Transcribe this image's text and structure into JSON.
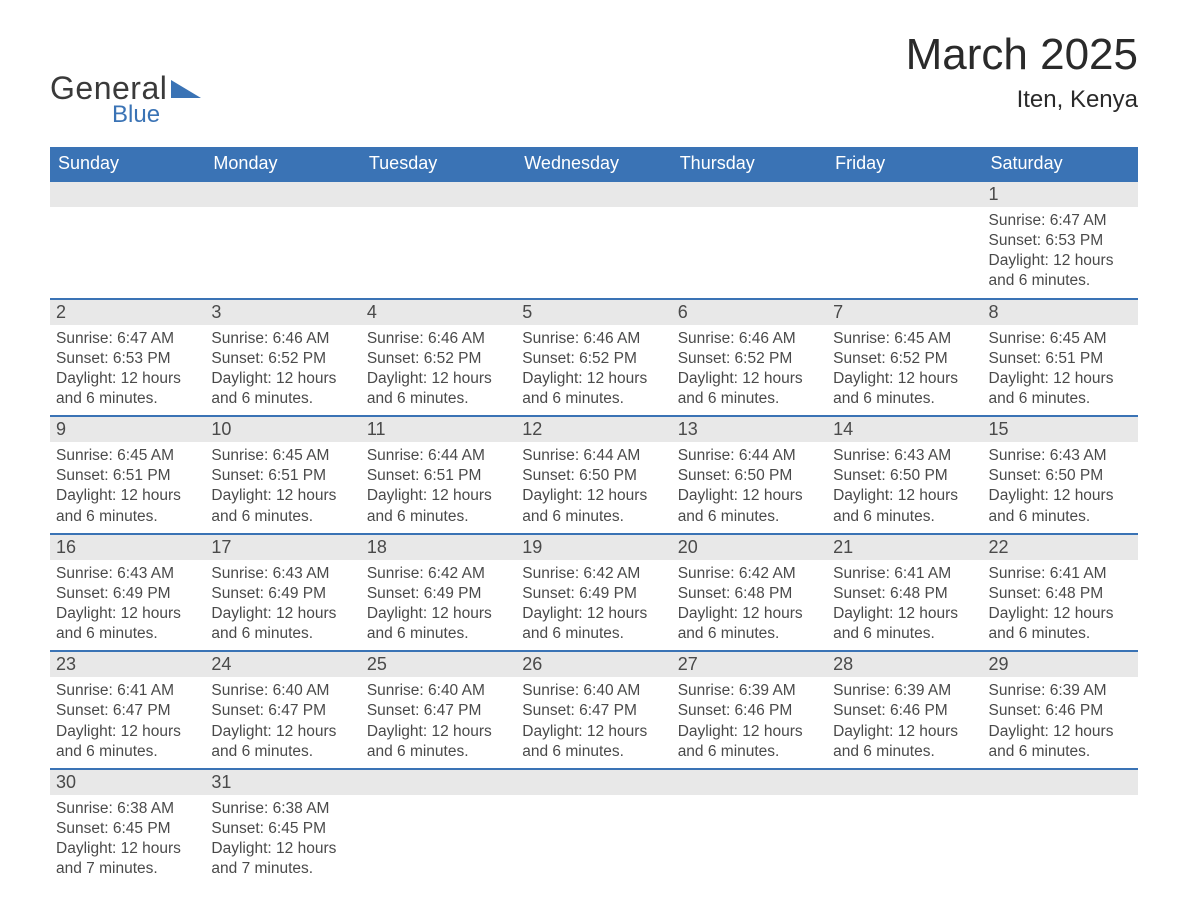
{
  "brand": {
    "general": "General",
    "blue": "Blue"
  },
  "title": {
    "month": "March 2025",
    "location": "Iten, Kenya"
  },
  "colors": {
    "header_bg": "#3a73b5",
    "header_text": "#ffffff",
    "daynum_bg": "#e8e8e8",
    "text": "#4a4a4a",
    "row_border": "#3a73b5",
    "page_bg": "#ffffff"
  },
  "day_headers": [
    "Sunday",
    "Monday",
    "Tuesday",
    "Wednesday",
    "Thursday",
    "Friday",
    "Saturday"
  ],
  "weeks": [
    [
      {
        "blank": true
      },
      {
        "blank": true
      },
      {
        "blank": true
      },
      {
        "blank": true
      },
      {
        "blank": true
      },
      {
        "blank": true
      },
      {
        "date": "1",
        "sunrise": "Sunrise: 6:47 AM",
        "sunset": "Sunset: 6:53 PM",
        "daylight": "Daylight: 12 hours and 6 minutes."
      }
    ],
    [
      {
        "date": "2",
        "sunrise": "Sunrise: 6:47 AM",
        "sunset": "Sunset: 6:53 PM",
        "daylight": "Daylight: 12 hours and 6 minutes."
      },
      {
        "date": "3",
        "sunrise": "Sunrise: 6:46 AM",
        "sunset": "Sunset: 6:52 PM",
        "daylight": "Daylight: 12 hours and 6 minutes."
      },
      {
        "date": "4",
        "sunrise": "Sunrise: 6:46 AM",
        "sunset": "Sunset: 6:52 PM",
        "daylight": "Daylight: 12 hours and 6 minutes."
      },
      {
        "date": "5",
        "sunrise": "Sunrise: 6:46 AM",
        "sunset": "Sunset: 6:52 PM",
        "daylight": "Daylight: 12 hours and 6 minutes."
      },
      {
        "date": "6",
        "sunrise": "Sunrise: 6:46 AM",
        "sunset": "Sunset: 6:52 PM",
        "daylight": "Daylight: 12 hours and 6 minutes."
      },
      {
        "date": "7",
        "sunrise": "Sunrise: 6:45 AM",
        "sunset": "Sunset: 6:52 PM",
        "daylight": "Daylight: 12 hours and 6 minutes."
      },
      {
        "date": "8",
        "sunrise": "Sunrise: 6:45 AM",
        "sunset": "Sunset: 6:51 PM",
        "daylight": "Daylight: 12 hours and 6 minutes."
      }
    ],
    [
      {
        "date": "9",
        "sunrise": "Sunrise: 6:45 AM",
        "sunset": "Sunset: 6:51 PM",
        "daylight": "Daylight: 12 hours and 6 minutes."
      },
      {
        "date": "10",
        "sunrise": "Sunrise: 6:45 AM",
        "sunset": "Sunset: 6:51 PM",
        "daylight": "Daylight: 12 hours and 6 minutes."
      },
      {
        "date": "11",
        "sunrise": "Sunrise: 6:44 AM",
        "sunset": "Sunset: 6:51 PM",
        "daylight": "Daylight: 12 hours and 6 minutes."
      },
      {
        "date": "12",
        "sunrise": "Sunrise: 6:44 AM",
        "sunset": "Sunset: 6:50 PM",
        "daylight": "Daylight: 12 hours and 6 minutes."
      },
      {
        "date": "13",
        "sunrise": "Sunrise: 6:44 AM",
        "sunset": "Sunset: 6:50 PM",
        "daylight": "Daylight: 12 hours and 6 minutes."
      },
      {
        "date": "14",
        "sunrise": "Sunrise: 6:43 AM",
        "sunset": "Sunset: 6:50 PM",
        "daylight": "Daylight: 12 hours and 6 minutes."
      },
      {
        "date": "15",
        "sunrise": "Sunrise: 6:43 AM",
        "sunset": "Sunset: 6:50 PM",
        "daylight": "Daylight: 12 hours and 6 minutes."
      }
    ],
    [
      {
        "date": "16",
        "sunrise": "Sunrise: 6:43 AM",
        "sunset": "Sunset: 6:49 PM",
        "daylight": "Daylight: 12 hours and 6 minutes."
      },
      {
        "date": "17",
        "sunrise": "Sunrise: 6:43 AM",
        "sunset": "Sunset: 6:49 PM",
        "daylight": "Daylight: 12 hours and 6 minutes."
      },
      {
        "date": "18",
        "sunrise": "Sunrise: 6:42 AM",
        "sunset": "Sunset: 6:49 PM",
        "daylight": "Daylight: 12 hours and 6 minutes."
      },
      {
        "date": "19",
        "sunrise": "Sunrise: 6:42 AM",
        "sunset": "Sunset: 6:49 PM",
        "daylight": "Daylight: 12 hours and 6 minutes."
      },
      {
        "date": "20",
        "sunrise": "Sunrise: 6:42 AM",
        "sunset": "Sunset: 6:48 PM",
        "daylight": "Daylight: 12 hours and 6 minutes."
      },
      {
        "date": "21",
        "sunrise": "Sunrise: 6:41 AM",
        "sunset": "Sunset: 6:48 PM",
        "daylight": "Daylight: 12 hours and 6 minutes."
      },
      {
        "date": "22",
        "sunrise": "Sunrise: 6:41 AM",
        "sunset": "Sunset: 6:48 PM",
        "daylight": "Daylight: 12 hours and 6 minutes."
      }
    ],
    [
      {
        "date": "23",
        "sunrise": "Sunrise: 6:41 AM",
        "sunset": "Sunset: 6:47 PM",
        "daylight": "Daylight: 12 hours and 6 minutes."
      },
      {
        "date": "24",
        "sunrise": "Sunrise: 6:40 AM",
        "sunset": "Sunset: 6:47 PM",
        "daylight": "Daylight: 12 hours and 6 minutes."
      },
      {
        "date": "25",
        "sunrise": "Sunrise: 6:40 AM",
        "sunset": "Sunset: 6:47 PM",
        "daylight": "Daylight: 12 hours and 6 minutes."
      },
      {
        "date": "26",
        "sunrise": "Sunrise: 6:40 AM",
        "sunset": "Sunset: 6:47 PM",
        "daylight": "Daylight: 12 hours and 6 minutes."
      },
      {
        "date": "27",
        "sunrise": "Sunrise: 6:39 AM",
        "sunset": "Sunset: 6:46 PM",
        "daylight": "Daylight: 12 hours and 6 minutes."
      },
      {
        "date": "28",
        "sunrise": "Sunrise: 6:39 AM",
        "sunset": "Sunset: 6:46 PM",
        "daylight": "Daylight: 12 hours and 6 minutes."
      },
      {
        "date": "29",
        "sunrise": "Sunrise: 6:39 AM",
        "sunset": "Sunset: 6:46 PM",
        "daylight": "Daylight: 12 hours and 6 minutes."
      }
    ],
    [
      {
        "date": "30",
        "sunrise": "Sunrise: 6:38 AM",
        "sunset": "Sunset: 6:45 PM",
        "daylight": "Daylight: 12 hours and 7 minutes."
      },
      {
        "date": "31",
        "sunrise": "Sunrise: 6:38 AM",
        "sunset": "Sunset: 6:45 PM",
        "daylight": "Daylight: 12 hours and 7 minutes."
      },
      {
        "blank": true
      },
      {
        "blank": true
      },
      {
        "blank": true
      },
      {
        "blank": true
      },
      {
        "blank": true
      }
    ]
  ]
}
